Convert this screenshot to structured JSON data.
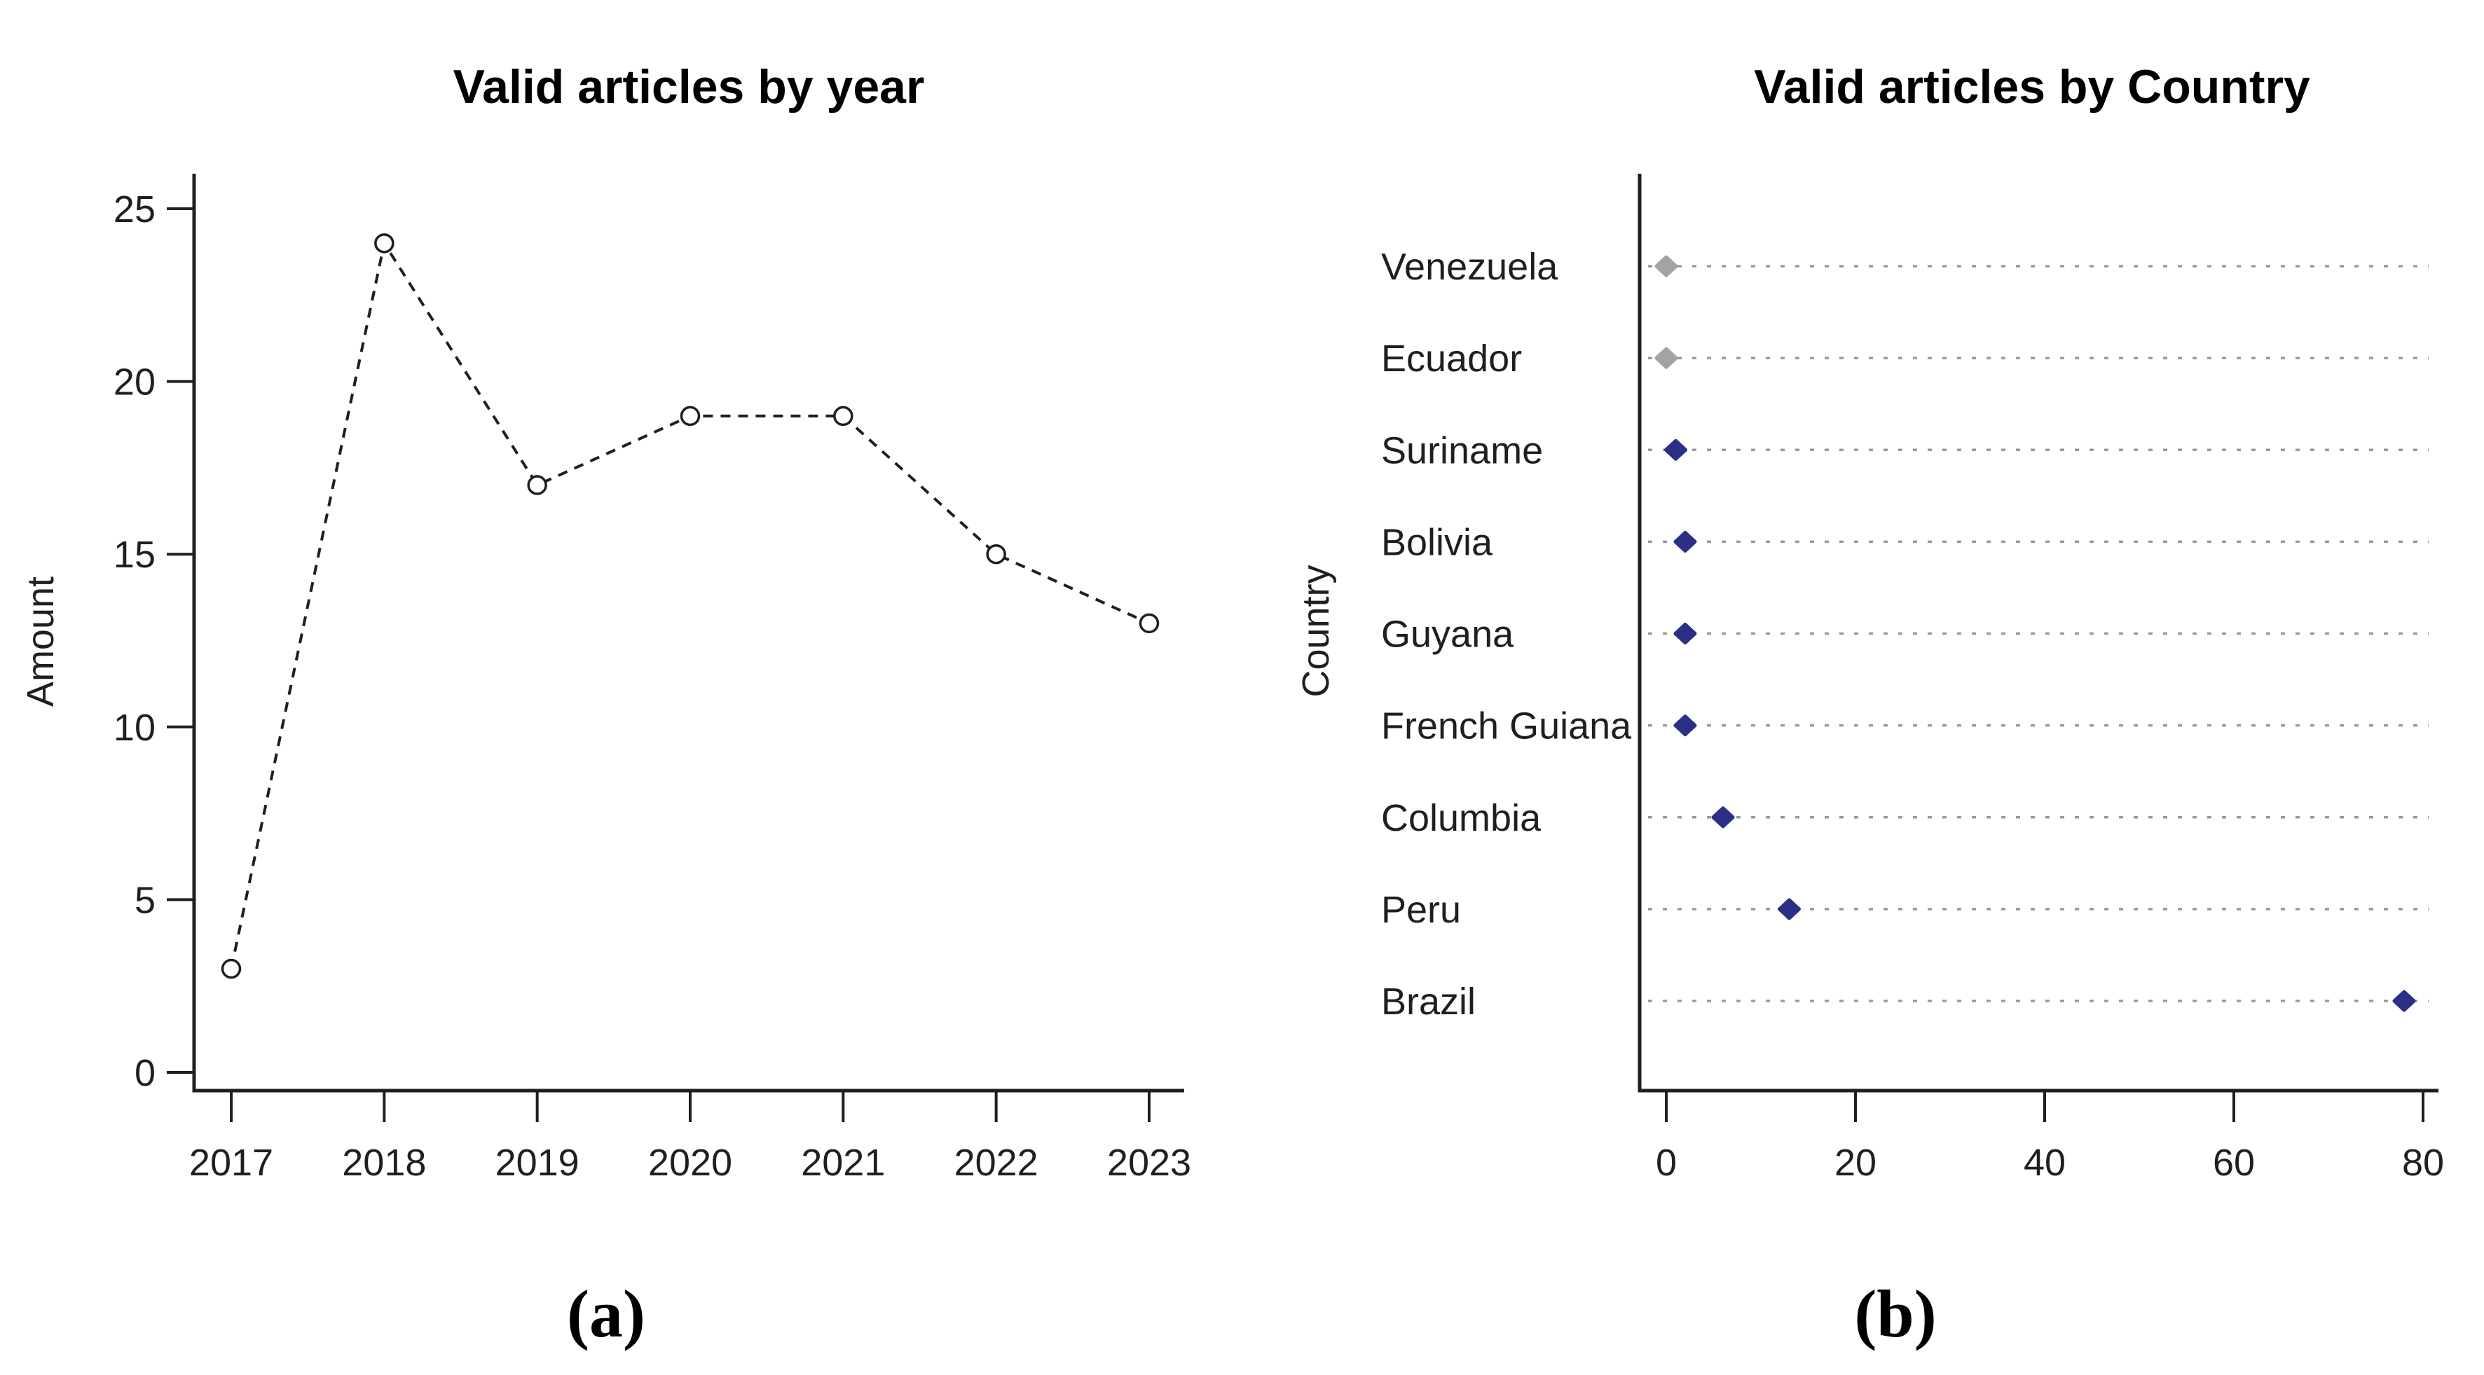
{
  "page": {
    "background": "#ffffff"
  },
  "colors": {
    "axis": "#1f1f1f",
    "line": "#1f1f1f",
    "marker_fill": "#ffffff",
    "navy_dot": "#2b2f86",
    "navy_label": "#31319e",
    "muted_dot": "#a3a3a3",
    "muted_label": "#a9aeb8",
    "grid": "#9a9a9a",
    "title": "#000000"
  },
  "chart_data": [
    {
      "id": "valid_articles_by_year",
      "type": "line",
      "title": "Valid articles by year",
      "xlabel": "",
      "ylabel": "Amount",
      "x": [
        2017,
        2018,
        2019,
        2020,
        2021,
        2022,
        2023
      ],
      "values": [
        3,
        24,
        17,
        19,
        19,
        15,
        13
      ],
      "ylim": [
        0,
        25
      ],
      "yticks": [
        0,
        5,
        10,
        15,
        20,
        25
      ],
      "line_style": "dashed",
      "marker": "open-circle",
      "grid": false,
      "legend": "none",
      "caption": "(a)"
    },
    {
      "id": "valid_articles_by_country",
      "type": "scatter",
      "title": "Valid articles by Country",
      "xlabel": "",
      "ylabel": "Country",
      "categories": [
        "Venezuela",
        "Ecuador",
        "Suriname",
        "Bolivia",
        "Guyana",
        "French Guiana",
        "Columbia",
        "Peru",
        "Brazil"
      ],
      "values": [
        0,
        0,
        1,
        2,
        2,
        2,
        6,
        13,
        78
      ],
      "muted": [
        true,
        true,
        false,
        false,
        false,
        false,
        false,
        false,
        false
      ],
      "xlim": [
        0,
        80
      ],
      "xticks": [
        0,
        20,
        40,
        60,
        80
      ],
      "grid": "dotted-row-lines",
      "legend": "none",
      "caption": "(b)"
    }
  ]
}
